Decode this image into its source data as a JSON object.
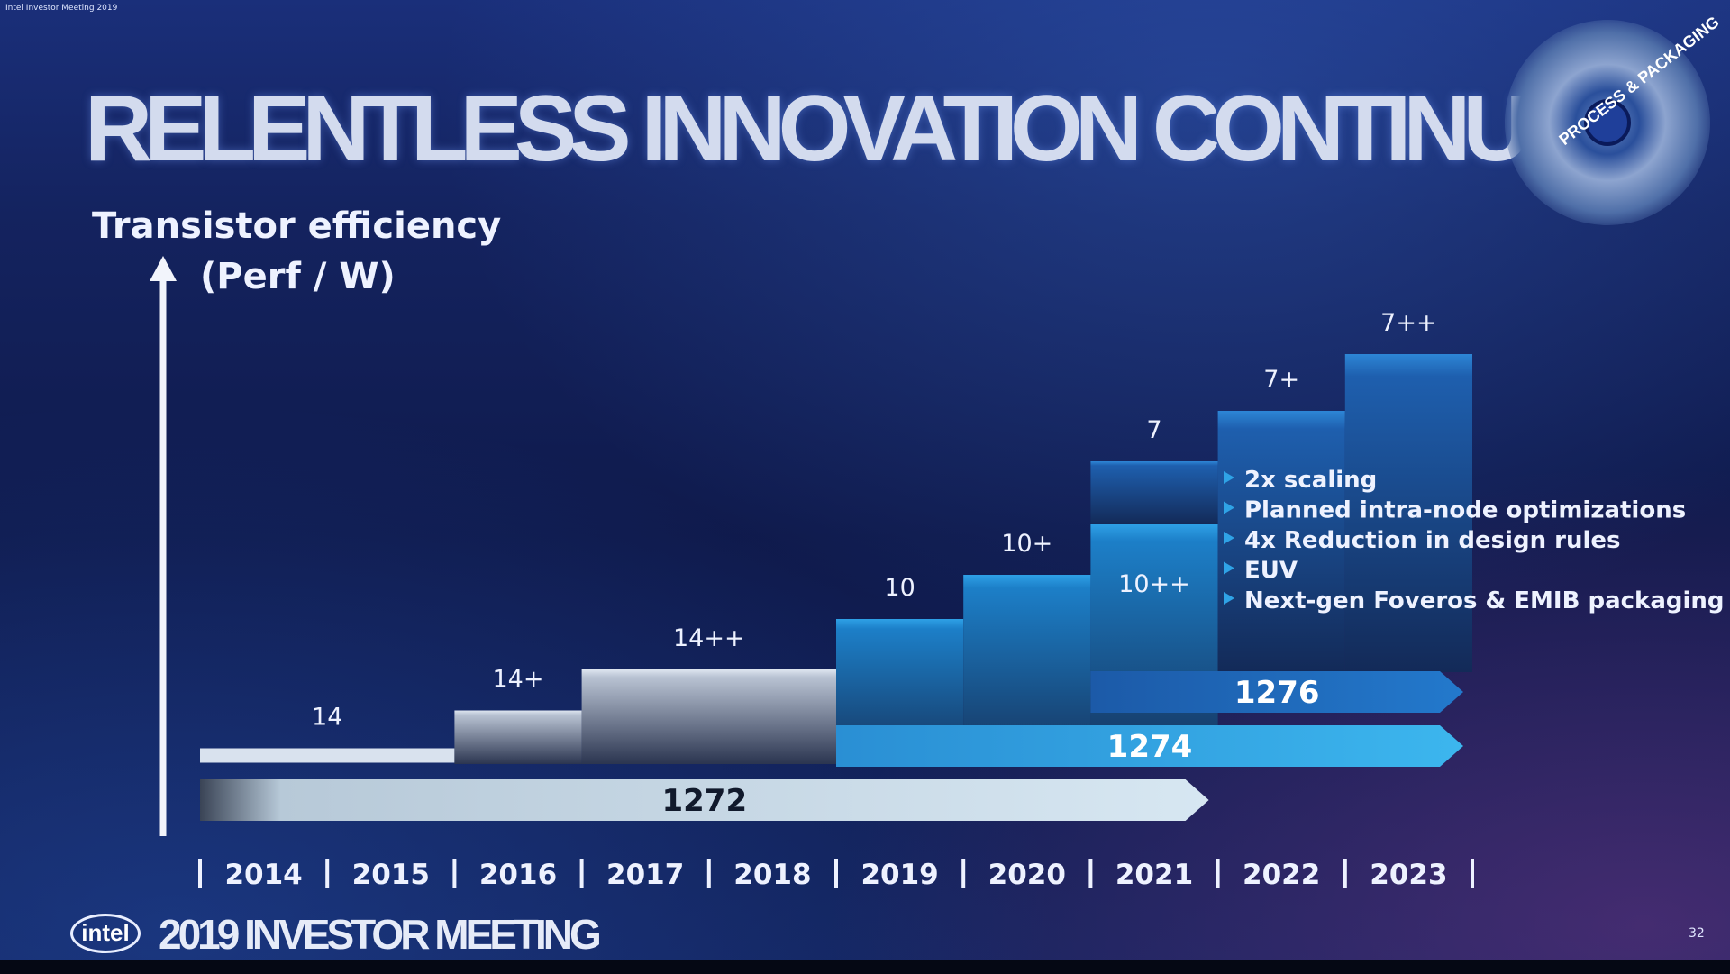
{
  "top_bar": "Intel Investor Meeting 2019",
  "title": "RELENTLESS INNOVATION CONTINUES",
  "logo_text": "PROCESS & PACKAGING",
  "footer": {
    "logo": "intel",
    "title": "2019 INVESTOR MEETING"
  },
  "page_number": "32",
  "colors": {
    "background": "#0f1a4c",
    "node14_family": "#cfd8e6",
    "node10_family": "#1c7fc8",
    "node7_family": "#2a74c4",
    "arrow_1272": "#d7e7f2",
    "arrow_1274": "#39b0ea",
    "arrow_1276": "#1f6fc0",
    "text": "#eef2ff"
  },
  "chart_data": {
    "type": "bar",
    "ylabel": [
      "Transistor efficiency",
      "(Perf / W)"
    ],
    "categories": [
      "2014",
      "2015",
      "2016",
      "2017",
      "2018",
      "2019",
      "2020",
      "2021",
      "2022",
      "2023"
    ],
    "steps": [
      {
        "label": "14",
        "start": 2014,
        "end": 2016,
        "level": 0.5,
        "family": "14"
      },
      {
        "label": "14+",
        "start": 2016,
        "end": 2017,
        "level": 1.7,
        "family": "14"
      },
      {
        "label": "14++",
        "start": 2017,
        "end": 2019,
        "level": 3.0,
        "family": "14"
      },
      {
        "label": "10",
        "start": 2019,
        "end": 2020,
        "level": 4.6,
        "family": "10"
      },
      {
        "label": "10+",
        "start": 2020,
        "end": 2021,
        "level": 6.0,
        "family": "10"
      },
      {
        "label": "10++",
        "start": 2021,
        "end": 2022,
        "level": 7.6,
        "family": "10"
      },
      {
        "label": "7",
        "start": 2021,
        "end": 2022,
        "level": 9.6,
        "family": "7"
      },
      {
        "label": "7+",
        "start": 2022,
        "end": 2023,
        "level": 11.2,
        "family": "7"
      },
      {
        "label": "7++",
        "start": 2023,
        "end": 2024,
        "level": 13.0,
        "family": "7"
      }
    ],
    "processes": [
      {
        "name": "1272",
        "start": 2014,
        "end": 2022
      },
      {
        "name": "1274",
        "start": 2019,
        "end": 2024
      },
      {
        "name": "1276",
        "start": 2021,
        "end": 2024
      }
    ],
    "annotations": [
      "2x scaling",
      "Planned intra-node optimizations",
      "4x Reduction in design rules",
      "EUV",
      "Next-gen Foveros & EMIB packaging"
    ]
  }
}
